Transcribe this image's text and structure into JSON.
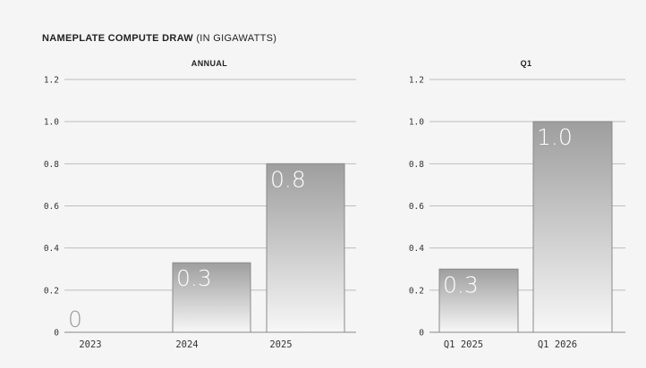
{
  "title_bold": "NAMEPLATE COMPUTE DRAW",
  "title_rest": "(IN GIGAWATTS)",
  "colors": {
    "background": "#f5f5f5",
    "grid": "#bdbdbd",
    "bar_top": "#9e9e9e",
    "bar_bottom": "#f7f7f7",
    "bar_stroke": "#8a8a8a"
  },
  "chart_data": [
    {
      "type": "bar",
      "title": "ANNUAL",
      "categories": [
        "2023",
        "2024",
        "2025"
      ],
      "values": [
        0,
        0.33,
        0.8
      ],
      "data_labels": [
        "0",
        "0.3",
        "0.8"
      ],
      "ylim": [
        0,
        1.2
      ],
      "yticks": [
        "0",
        "0.2",
        "0.4",
        "0.6",
        "0.8",
        "1.0",
        "1.2"
      ],
      "xlabel": "",
      "ylabel": "",
      "grid": true
    },
    {
      "type": "bar",
      "title": "Q1",
      "categories": [
        "Q1 2025",
        "Q1 2026"
      ],
      "values": [
        0.3,
        1.0
      ],
      "data_labels": [
        "0.3",
        "1.0"
      ],
      "ylim": [
        0,
        1.2
      ],
      "yticks": [
        "0",
        "0.2",
        "0.4",
        "0.6",
        "0.8",
        "1.0",
        "1.2"
      ],
      "xlabel": "",
      "ylabel": "",
      "grid": true
    }
  ]
}
